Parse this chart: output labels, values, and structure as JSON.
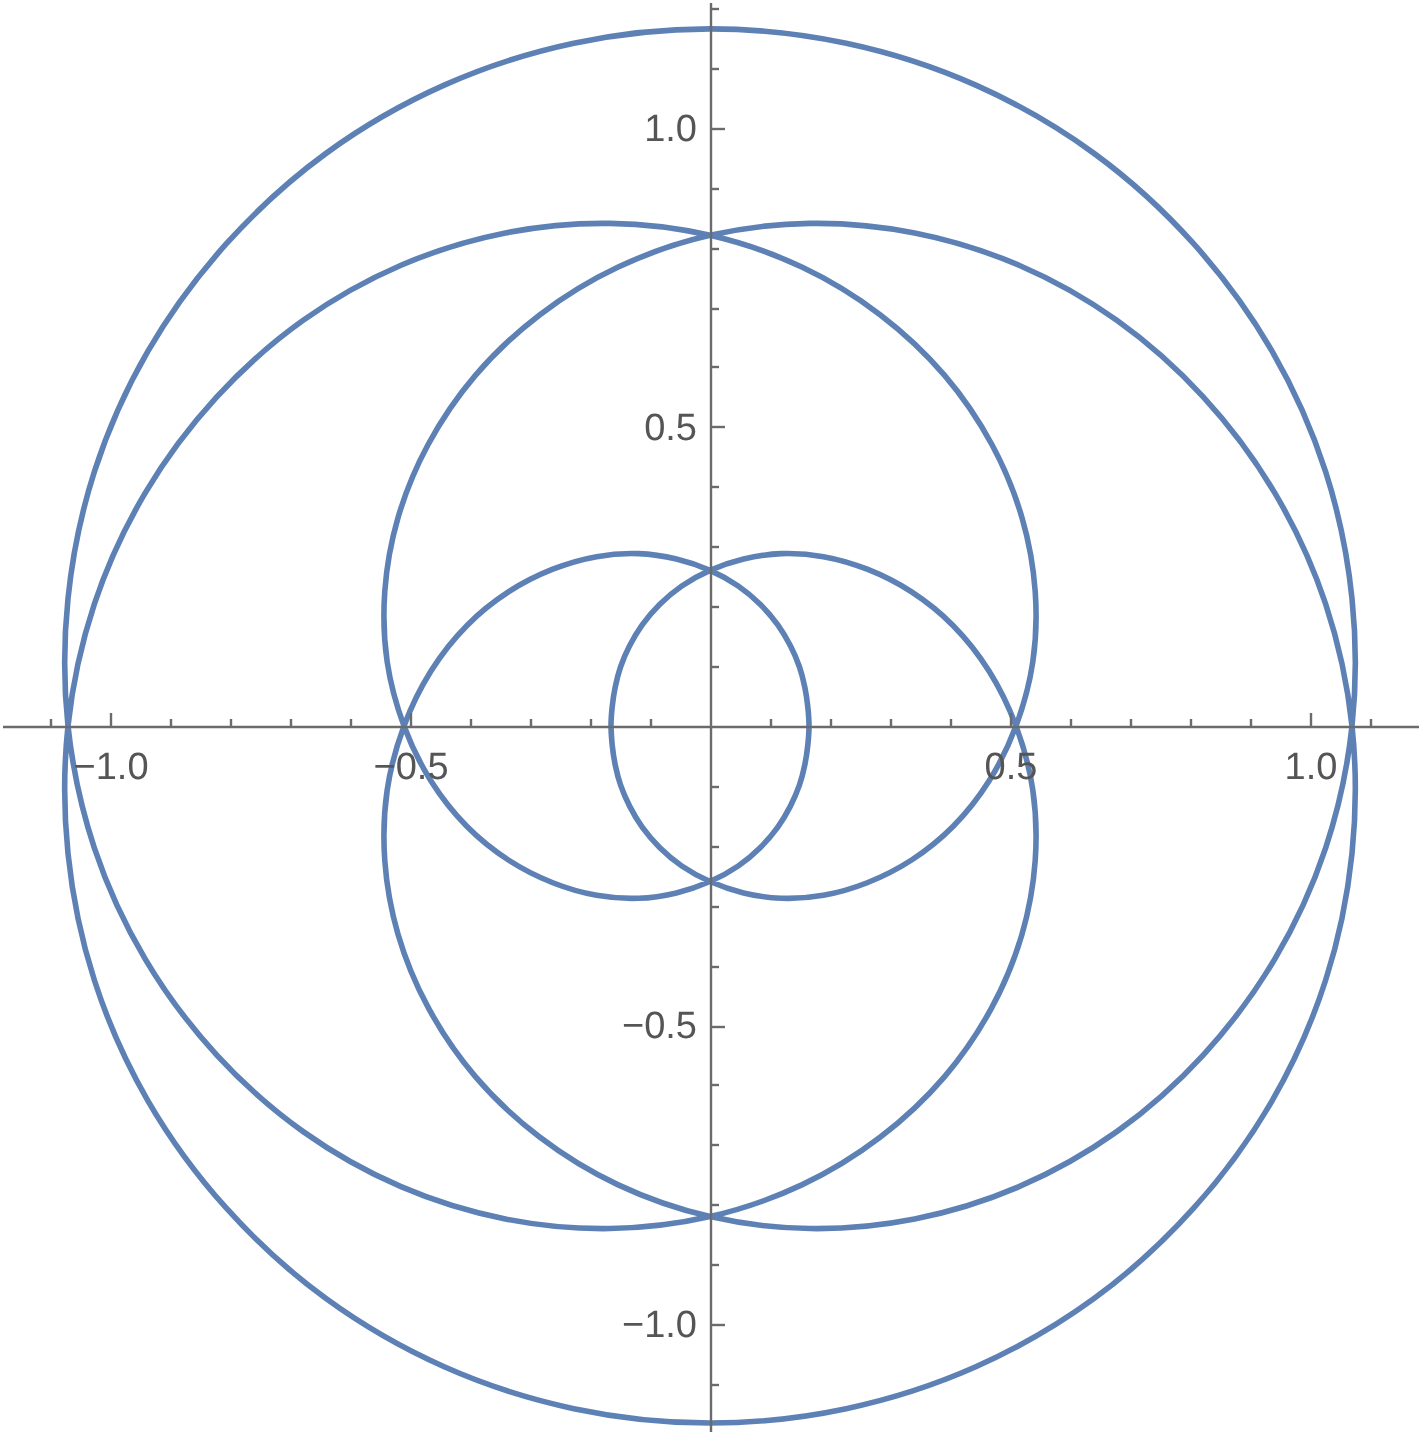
{
  "chart_data": {
    "type": "line",
    "color": "#5e81b5",
    "x": [
      -0.165,
      -0.163,
      -0.158,
      -0.149,
      -0.134,
      -0.113,
      -0.084,
      -0.047,
      0,
      0.056,
      0.119,
      0.189,
      0.262,
      0.336,
      0.405,
      0.465,
      0.51,
      0.538,
      0.542,
      0.52,
      0.47,
      0.391,
      0.284,
      0.153,
      0,
      -0.167,
      -0.341,
      -0.515,
      -0.678,
      -0.822,
      -0.941,
      -1.026,
      -1.07,
      -1.07,
      -1.026,
      -0.937,
      -0.806,
      -0.64,
      -0.443,
      -0.227,
      0,
      0.227,
      0.443,
      0.64,
      0.806,
      0.937,
      1.026,
      1.07,
      1.07,
      1.026,
      0.941,
      0.822,
      0.678,
      0.515,
      0.341,
      0.167,
      0,
      -0.153,
      -0.284,
      -0.391,
      -0.47,
      -0.52,
      -0.542,
      -0.538,
      -0.51,
      -0.465,
      -0.405,
      -0.336,
      -0.262,
      -0.189,
      -0.119,
      -0.056,
      0,
      0.047,
      0.084,
      0.113,
      0.134,
      0.149,
      0.158,
      0.163,
      0.165,
      0.163,
      0.158,
      0.149,
      0.134,
      0.113,
      0.084,
      0.047,
      0,
      -0.056,
      -0.119,
      -0.189,
      -0.262,
      -0.336,
      -0.405,
      -0.465,
      -0.51,
      -0.538,
      -0.542,
      -0.52,
      -0.47,
      -0.391,
      -0.284,
      -0.153,
      0,
      0.167,
      0.341,
      0.515,
      0.678,
      0.822,
      0.941,
      1.026,
      1.07,
      1.07,
      1.026,
      0.937,
      0.806,
      0.64,
      0.443,
      0.227,
      0,
      -0.227,
      -0.443,
      -0.64,
      -0.806,
      -0.937,
      -1.026,
      -1.07,
      -1.07,
      -1.026,
      -0.941,
      -0.822,
      -0.678,
      -0.515,
      -0.341,
      -0.167,
      0,
      0.153,
      0.284,
      0.391,
      0.47,
      0.52,
      0.542,
      0.538,
      0.51,
      0.465,
      0.405,
      0.336,
      0.262,
      0.189,
      0.119,
      0.056,
      0,
      -0.047,
      -0.084,
      -0.113,
      -0.134,
      -0.149,
      -0.158,
      -0.163,
      -0.165,
      -0.163
    ],
    "values": [
      0,
      -0.032,
      -0.065,
      -0.099,
      -0.134,
      -0.169,
      -0.203,
      -0.234,
      -0.26,
      -0.279,
      -0.288,
      -0.283,
      -0.262,
      -0.224,
      -0.168,
      -0.092,
      0,
      0.107,
      0.225,
      0.348,
      0.47,
      0.586,
      0.687,
      0.767,
      0.82,
      0.84,
      0.824,
      0.77,
      0.678,
      0.55,
      0.39,
      0.204,
      0,
      -0.213,
      -0.425,
      -0.626,
      -0.806,
      -0.957,
      -1.071,
      -1.141,
      -1.165,
      -1.141,
      -1.071,
      -0.957,
      -0.806,
      -0.626,
      -0.425,
      -0.213,
      0,
      0.204,
      0.39,
      0.55,
      0.678,
      0.77,
      0.824,
      0.84,
      0.82,
      0.767,
      0.687,
      0.586,
      0.47,
      0.348,
      0.225,
      0.107,
      0,
      -0.092,
      -0.168,
      -0.224,
      -0.262,
      -0.283,
      -0.288,
      -0.279,
      -0.26,
      -0.234,
      -0.203,
      -0.169,
      -0.134,
      -0.099,
      -0.065,
      -0.032,
      0,
      0.032,
      0.065,
      0.099,
      0.134,
      0.169,
      0.203,
      0.234,
      0.26,
      0.279,
      0.288,
      0.283,
      0.262,
      0.224,
      0.168,
      0.092,
      0,
      -0.107,
      -0.225,
      -0.348,
      -0.47,
      -0.586,
      -0.687,
      -0.767,
      -0.82,
      -0.84,
      -0.824,
      -0.77,
      -0.678,
      -0.55,
      -0.39,
      -0.204,
      0,
      0.213,
      0.425,
      0.626,
      0.806,
      0.957,
      1.071,
      1.141,
      1.165,
      1.141,
      1.071,
      0.957,
      0.806,
      0.626,
      0.425,
      0.213,
      0,
      -0.204,
      -0.39,
      -0.55,
      -0.678,
      -0.77,
      -0.824,
      -0.84,
      -0.82,
      -0.767,
      -0.687,
      -0.586,
      -0.47,
      -0.348,
      -0.225,
      -0.107,
      0,
      0.092,
      0.168,
      0.224,
      0.262,
      0.283,
      0.288,
      0.279,
      0.26,
      0.234,
      0.203,
      0.169,
      0.134,
      0.099,
      0.065,
      0.032,
      0,
      -0.032
    ],
    "xlim": [
      -1.18,
      1.18
    ],
    "ylim": [
      -1.18,
      1.21
    ],
    "xticks": [
      {
        "value": -1.1,
        "label": null
      },
      {
        "value": -1,
        "label": "−1.0"
      },
      {
        "value": -0.9,
        "label": null
      },
      {
        "value": -0.8,
        "label": null
      },
      {
        "value": -0.7,
        "label": null
      },
      {
        "value": -0.6,
        "label": null
      },
      {
        "value": -0.5,
        "label": "−0.5"
      },
      {
        "value": -0.4,
        "label": null
      },
      {
        "value": -0.3,
        "label": null
      },
      {
        "value": -0.2,
        "label": null
      },
      {
        "value": -0.1,
        "label": null
      },
      {
        "value": 0.1,
        "label": null
      },
      {
        "value": 0.2,
        "label": null
      },
      {
        "value": 0.3,
        "label": null
      },
      {
        "value": 0.4,
        "label": null
      },
      0.5,
      {
        "value": 0.6,
        "label": null
      },
      {
        "value": 0.7,
        "label": null
      },
      {
        "value": 0.8,
        "label": null
      },
      {
        "value": 0.9,
        "label": null
      },
      {
        "value": 1,
        "label": "1.0"
      },
      {
        "value": 1.1,
        "label": null
      }
    ],
    "yticks": [
      {
        "value": -1.1,
        "label": null
      },
      {
        "value": -1,
        "label": "−1.0"
      },
      {
        "value": -0.9,
        "label": null
      },
      {
        "value": -0.8,
        "label": null
      },
      {
        "value": -0.7,
        "label": null
      },
      {
        "value": -0.6,
        "label": null
      },
      {
        "value": -0.5,
        "label": "−0.5"
      },
      {
        "value": -0.4,
        "label": null
      },
      {
        "value": -0.3,
        "label": null
      },
      {
        "value": -0.2,
        "label": null
      },
      {
        "value": -0.1,
        "label": null
      },
      {
        "value": 0.1,
        "label": null
      },
      {
        "value": 0.2,
        "label": null
      },
      {
        "value": 0.3,
        "label": null
      },
      {
        "value": 0.4,
        "label": null
      },
      0.5,
      {
        "value": 0.6,
        "label": null
      },
      {
        "value": 0.7,
        "label": null
      },
      {
        "value": 0.8,
        "label": null
      },
      {
        "value": 0.9,
        "label": null
      },
      {
        "value": 1,
        "label": "1.0"
      },
      {
        "value": 1.1,
        "label": null
      },
      {
        "value": 1.2,
        "label": null
      }
    ]
  }
}
